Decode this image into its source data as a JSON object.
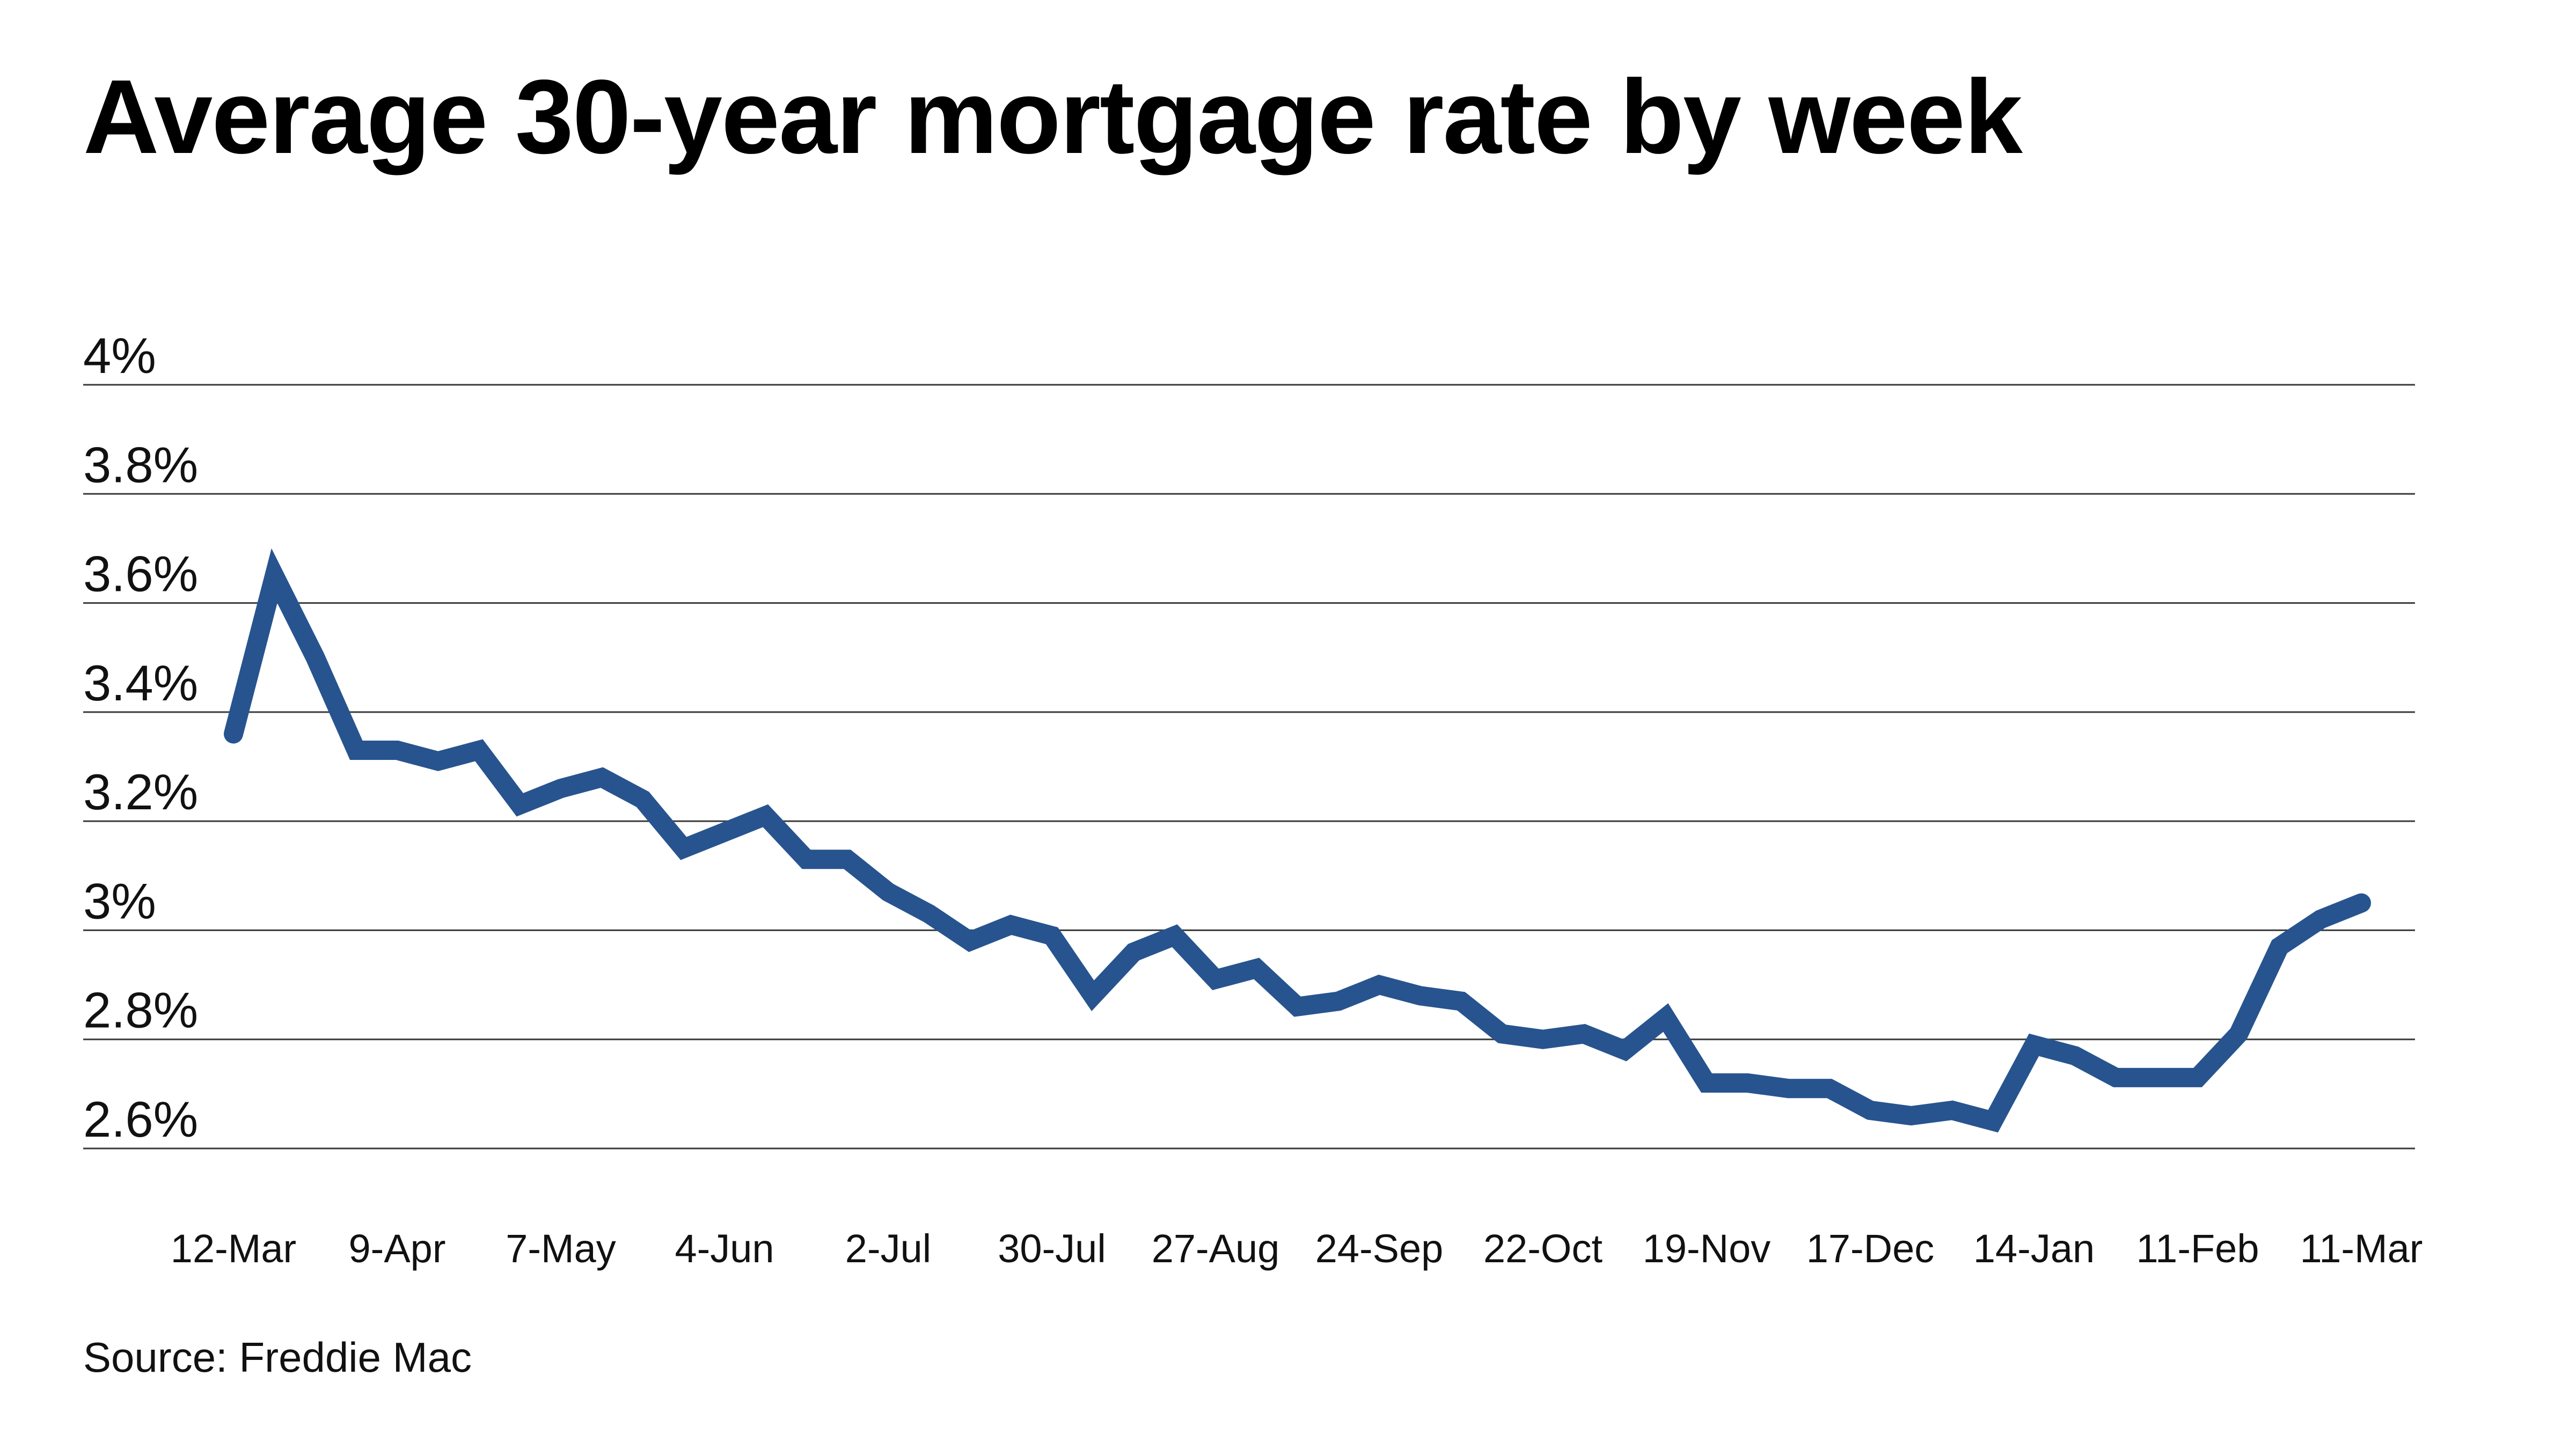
{
  "chart_data": {
    "type": "line",
    "title": "Average 30-year mortgage rate by week",
    "source": "Source: Freddie Mac",
    "xlabel": "",
    "ylabel": "",
    "ylim": [
      2.6,
      4.0
    ],
    "yticks": [
      {
        "value": 4.0,
        "label": "4%"
      },
      {
        "value": 3.8,
        "label": "3.8%"
      },
      {
        "value": 3.6,
        "label": "3.6%"
      },
      {
        "value": 3.4,
        "label": "3.4%"
      },
      {
        "value": 3.2,
        "label": "3.2%"
      },
      {
        "value": 3.0,
        "label": "3%"
      },
      {
        "value": 2.8,
        "label": "2.8%"
      },
      {
        "value": 2.6,
        "label": "2.6%"
      }
    ],
    "xticks": [
      {
        "index": 0,
        "label": "12-Mar"
      },
      {
        "index": 4,
        "label": "9-Apr"
      },
      {
        "index": 8,
        "label": "7-May"
      },
      {
        "index": 12,
        "label": "4-Jun"
      },
      {
        "index": 16,
        "label": "2-Jul"
      },
      {
        "index": 20,
        "label": "30-Jul"
      },
      {
        "index": 24,
        "label": "27-Aug"
      },
      {
        "index": 28,
        "label": "24-Sep"
      },
      {
        "index": 32,
        "label": "22-Oct"
      },
      {
        "index": 36,
        "label": "19-Nov"
      },
      {
        "index": 40,
        "label": "17-Dec"
      },
      {
        "index": 44,
        "label": "14-Jan"
      },
      {
        "index": 48,
        "label": "11-Feb"
      },
      {
        "index": 52,
        "label": "11-Mar"
      }
    ],
    "grid": true,
    "legend": "none",
    "series": [
      {
        "name": "Average 30-year mortgage rate",
        "color": "#27548f",
        "values": [
          3.36,
          3.65,
          3.5,
          3.33,
          3.33,
          3.31,
          3.33,
          3.23,
          3.26,
          3.28,
          3.24,
          3.15,
          3.18,
          3.21,
          3.13,
          3.13,
          3.07,
          3.03,
          2.98,
          3.01,
          2.99,
          2.88,
          2.96,
          2.99,
          2.91,
          2.93,
          2.86,
          2.87,
          2.9,
          2.88,
          2.87,
          2.81,
          2.8,
          2.81,
          2.78,
          2.84,
          2.72,
          2.72,
          2.71,
          2.71,
          2.67,
          2.66,
          2.67,
          2.65,
          2.79,
          2.77,
          2.73,
          2.73,
          2.73,
          2.81,
          2.97,
          3.02,
          3.05
        ]
      }
    ]
  }
}
